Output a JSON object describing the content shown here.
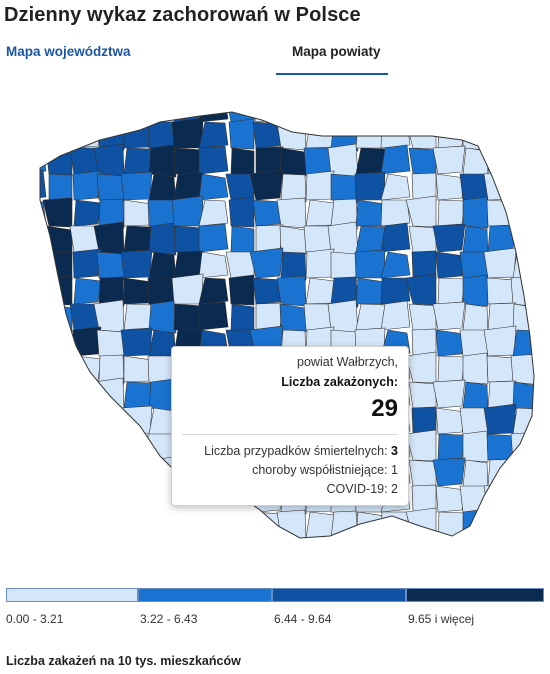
{
  "title": "Dzienny wykaz zachorowań w Polsce",
  "tabs": [
    {
      "label": "Mapa województwa",
      "active": false
    },
    {
      "label": "Mapa powiaty",
      "active": true
    }
  ],
  "map": {
    "colors": {
      "outline": "#333333",
      "class_1": "#d4e6f9",
      "class_2": "#1a73d1",
      "class_3": "#0f52a3",
      "class_4": "#0b2a50"
    }
  },
  "tooltip": {
    "name": "powiat Wałbrzych,",
    "label": "Liczba zakażonych:",
    "value": "29",
    "deaths_label": "Liczba przypadków śmiertelnych:",
    "deaths_value": "3",
    "comorbidities": "choroby współistniejące: 1",
    "covid": "COVID-19: 2"
  },
  "legend": {
    "classes": [
      {
        "label": "0.00 - 3.21",
        "color": "#d4e6f9"
      },
      {
        "label": "3.22 - 6.43",
        "color": "#1a73d1"
      },
      {
        "label": "6.44 - 9.64",
        "color": "#0f52a3"
      },
      {
        "label": "9.65 i więcej",
        "color": "#0b2a50"
      }
    ]
  },
  "footer": "Liczba zakażeń na 10 tys. mieszkańców"
}
